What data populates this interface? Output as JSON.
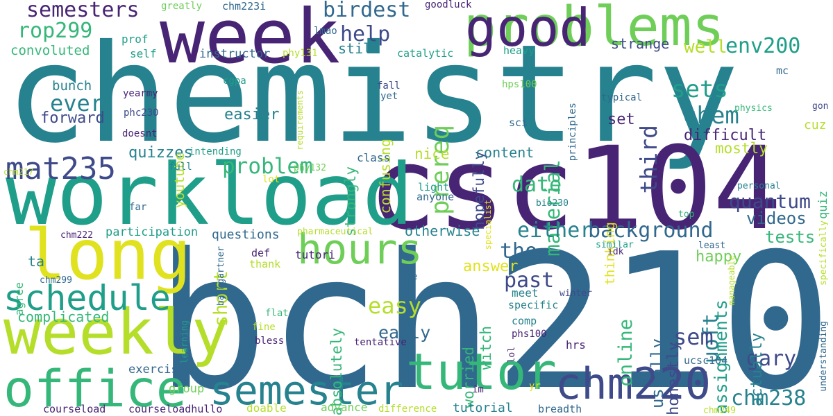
{
  "palette": {
    "dark_purple": "#482475",
    "indigo": "#3e4a89",
    "blue": "#31688e",
    "teal": "#26828e",
    "sea_green": "#1f9e89",
    "green": "#35b779",
    "light_green": "#6ece58",
    "yellow_green": "#b5de2b",
    "yellow": "#e0e21f"
  },
  "words": [
    {
      "text": "chemistry",
      "color": "#26828e",
      "weight": 1.0
    },
    {
      "text": "bch210",
      "color": "#31688e",
      "weight": 0.95
    },
    {
      "text": "csc104",
      "color": "#482475",
      "weight": 0.88
    },
    {
      "text": "workload",
      "color": "#1f9e89",
      "weight": 0.72
    },
    {
      "text": "week",
      "color": "#482475",
      "weight": 0.55
    },
    {
      "text": "problems",
      "color": "#6ece58",
      "weight": 0.52
    },
    {
      "text": "good",
      "color": "#482475",
      "weight": 0.45
    },
    {
      "text": "long",
      "color": "#e0e21f",
      "weight": 0.5
    },
    {
      "text": "weekly",
      "color": "#b5de2b",
      "weight": 0.5
    },
    {
      "text": "office",
      "color": "#35b779",
      "weight": 0.45
    },
    {
      "text": "tutor",
      "color": "#35b779",
      "weight": 0.42
    },
    {
      "text": "semester",
      "color": "#26828e",
      "weight": 0.4
    },
    {
      "text": "chm220",
      "color": "#3e4a89",
      "weight": 0.4
    },
    {
      "text": "hours",
      "color": "#6ece58",
      "weight": 0.38
    },
    {
      "text": "schedule",
      "color": "#1f9e89",
      "weight": 0.32
    },
    {
      "text": "mat235",
      "color": "#3e4a89",
      "weight": 0.3
    },
    {
      "text": "semesters",
      "color": "#482475",
      "weight": 0.25
    },
    {
      "text": "birdest",
      "color": "#31688e",
      "weight": 0.25
    },
    {
      "text": "rop299",
      "color": "#35b779",
      "weight": 0.25
    },
    {
      "text": "help",
      "color": "#3e4a89",
      "weight": 0.22
    },
    {
      "text": "prereq",
      "color": "#6ece58",
      "weight": 0.25
    },
    {
      "text": "material",
      "color": "#35b779",
      "weight": 0.25
    },
    {
      "text": "third",
      "color": "#3e4a89",
      "weight": 0.25
    },
    {
      "text": "sets",
      "color": "#1f9e89",
      "weight": 0.25
    },
    {
      "text": "env200",
      "color": "#1f9e89",
      "weight": 0.22
    },
    {
      "text": "well",
      "color": "#b5de2b",
      "weight": 0.18
    },
    {
      "text": "chem",
      "color": "#26828e",
      "weight": 0.25
    },
    {
      "text": "ever",
      "color": "#26828e",
      "weight": 0.25
    },
    {
      "text": "problem",
      "color": "#35b779",
      "weight": 0.25
    },
    {
      "text": "date",
      "color": "#35b779",
      "weight": 0.25
    },
    {
      "text": "quantum",
      "color": "#3e4a89",
      "weight": 0.22
    },
    {
      "text": "either",
      "color": "#26828e",
      "weight": 0.25
    },
    {
      "text": "background",
      "color": "#31688e",
      "weight": 0.25
    },
    {
      "text": "tho",
      "color": "#31688e",
      "weight": 0.25
    },
    {
      "text": "past",
      "color": "#3e4a89",
      "weight": 0.25
    },
    {
      "text": "easy",
      "color": "#b5de2b",
      "weight": 0.25
    },
    {
      "text": "short",
      "color": "#b5de2b",
      "weight": 0.25
    },
    {
      "text": "online",
      "color": "#35b779",
      "weight": 0.22
    },
    {
      "text": "uoft",
      "color": "#26828e",
      "weight": 0.25
    },
    {
      "text": "sem",
      "color": "#3e4a89",
      "weight": 0.25
    },
    {
      "text": "assignments",
      "color": "#1f9e89",
      "weight": 0.22
    },
    {
      "text": "gary",
      "color": "#3e4a89",
      "weight": 0.22
    },
    {
      "text": "chm238",
      "color": "#26828e",
      "weight": 0.22
    },
    {
      "text": "early",
      "color": "#31688e",
      "weight": 0.18
    },
    {
      "text": "usually",
      "color": "#31688e",
      "weight": 0.2
    },
    {
      "text": "honestly",
      "color": "#3e4a89",
      "weight": 0.18
    },
    {
      "text": "actually",
      "color": "#26828e",
      "weight": 0.18
    },
    {
      "text": "tests",
      "color": "#35b779",
      "weight": 0.18
    },
    {
      "text": "happy",
      "color": "#6ece58",
      "weight": 0.16
    },
    {
      "text": "videos",
      "color": "#31688e",
      "weight": 0.16
    },
    {
      "text": "answer",
      "color": "#e0e21f",
      "weight": 0.16
    },
    {
      "text": "worried",
      "color": "#35b779",
      "weight": 0.16
    },
    {
      "text": "absolutely",
      "color": "#35b779",
      "weight": 0.16
    },
    {
      "text": "witch",
      "color": "#35b779",
      "weight": 0.16
    },
    {
      "text": "hopefully",
      "color": "#3e4a89",
      "weight": 0.16
    },
    {
      "text": "strongly",
      "color": "#35b779",
      "weight": 0.16
    },
    {
      "text": "confusing",
      "color": "#b5de2b",
      "weight": 0.16
    },
    {
      "text": "thinking",
      "color": "#e0e21f",
      "weight": 0.14
    },
    {
      "text": "difficult",
      "color": "#482475",
      "weight": 0.16
    },
    {
      "text": "mostly",
      "color": "#b5de2b",
      "weight": 0.16
    },
    {
      "text": "quizzes",
      "color": "#26828e",
      "weight": 0.16
    },
    {
      "text": "easier",
      "color": "#26828e",
      "weight": 0.16
    },
    {
      "text": "forward",
      "color": "#3e4a89",
      "weight": 0.16
    },
    {
      "text": "bunch",
      "color": "#26828e",
      "weight": 0.14
    },
    {
      "text": "convoluted",
      "color": "#35b779",
      "weight": 0.14
    },
    {
      "text": "youtube",
      "color": "#b5de2b",
      "weight": 0.14
    },
    {
      "text": "still",
      "color": "#26828e",
      "weight": 0.14
    },
    {
      "text": "strange",
      "color": "#3e4a89",
      "weight": 0.14
    },
    {
      "text": "set",
      "color": "#482475",
      "weight": 0.14
    },
    {
      "text": "content",
      "color": "#26828e",
      "weight": 0.14
    },
    {
      "text": "nice",
      "color": "#b5de2b",
      "weight": 0.14
    },
    {
      "text": "quiz",
      "color": "#35b779",
      "weight": 0.12
    },
    {
      "text": "cuz",
      "color": "#b5de2b",
      "weight": 0.12
    },
    {
      "text": "otherwise",
      "color": "#26828e",
      "weight": 0.14
    },
    {
      "text": "questions",
      "color": "#31688e",
      "weight": 0.14
    },
    {
      "text": "complicated",
      "color": "#35b779",
      "weight": 0.14
    },
    {
      "text": "agree",
      "color": "#35b779",
      "weight": 0.12
    },
    {
      "text": "ta",
      "color": "#26828e",
      "weight": 0.14
    },
    {
      "text": "participation",
      "color": "#1f9e89",
      "weight": 0.12
    },
    {
      "text": "exercise",
      "color": "#31688e",
      "weight": 0.12
    },
    {
      "text": "group",
      "color": "#6ece58",
      "weight": 0.12
    },
    {
      "text": "courseload",
      "color": "#482475",
      "weight": 0.1
    },
    {
      "text": "courseloadhullo",
      "color": "#482475",
      "weight": 0.1
    },
    {
      "text": "doable",
      "color": "#b5de2b",
      "weight": 0.1
    },
    {
      "text": "advance",
      "color": "#6ece58",
      "weight": 0.1
    },
    {
      "text": "difference",
      "color": "#b5de2b",
      "weight": 0.09
    },
    {
      "text": "tutorial",
      "color": "#26828e",
      "weight": 0.12
    },
    {
      "text": "breadth",
      "color": "#31688e",
      "weight": 0.1
    },
    {
      "text": "chm249",
      "color": "#b5de2b",
      "weight": 0.08
    },
    {
      "text": "instructor",
      "color": "#31688e",
      "weight": 0.12
    },
    {
      "text": "prof",
      "color": "#1f9e89",
      "weight": 0.1
    },
    {
      "text": "self",
      "color": "#1f9e89",
      "weight": 0.1
    },
    {
      "text": "lmao",
      "color": "#31688e",
      "weight": 0.09
    },
    {
      "text": "greatly",
      "color": "#6ece58",
      "weight": 0.09
    },
    {
      "text": "chm223i",
      "color": "#31688e",
      "weight": 0.1
    },
    {
      "text": "goodluck",
      "color": "#482475",
      "weight": 0.09
    },
    {
      "text": "phy131",
      "color": "#b5de2b",
      "weight": 0.09
    },
    {
      "text": "catalytic",
      "color": "#1f9e89",
      "weight": 0.1
    },
    {
      "text": "heavy",
      "color": "#1f9e89",
      "weight": 0.1
    },
    {
      "text": "mc",
      "color": "#31688e",
      "weight": 0.1
    },
    {
      "text": "cgpa",
      "color": "#1f9e89",
      "weight": 0.09
    },
    {
      "text": "yearmy",
      "color": "#482475",
      "weight": 0.09
    },
    {
      "text": "phc230",
      "color": "#3e4a89",
      "weight": 0.09
    },
    {
      "text": "doesnt",
      "color": "#482475",
      "weight": 0.09
    },
    {
      "text": "requirements",
      "color": "#b5de2b",
      "weight": 0.08
    },
    {
      "text": "fall",
      "color": "#3e4a89",
      "weight": 0.09
    },
    {
      "text": "yet",
      "color": "#31688e",
      "weight": 0.09
    },
    {
      "text": "hps100",
      "color": "#6ece58",
      "weight": 0.09
    },
    {
      "text": "sci",
      "color": "#31688e",
      "weight": 0.1
    },
    {
      "text": "principles",
      "color": "#31688e",
      "weight": 0.09
    },
    {
      "text": "typical",
      "color": "#31688e",
      "weight": 0.09
    },
    {
      "text": "physics",
      "color": "#35b779",
      "weight": 0.09
    },
    {
      "text": "gon",
      "color": "#3e4a89",
      "weight": 0.08
    },
    {
      "text": "chm217",
      "color": "#b5de2b",
      "weight": 0.08
    },
    {
      "text": "intending",
      "color": "#1f9e89",
      "weight": 0.1
    },
    {
      "text": "phy132",
      "color": "#6ece58",
      "weight": 0.09
    },
    {
      "text": "full",
      "color": "#26828e",
      "weight": 0.09
    },
    {
      "text": "class",
      "color": "#31688e",
      "weight": 0.1
    },
    {
      "text": "lot",
      "color": "#e0e21f",
      "weight": 0.09
    },
    {
      "text": "light",
      "color": "#1f9e89",
      "weight": 0.1
    },
    {
      "text": "anyone",
      "color": "#31688e",
      "weight": 0.1
    },
    {
      "text": "specialist",
      "color": "#e0e21f",
      "weight": 0.08
    },
    {
      "text": "bio230",
      "color": "#26828e",
      "weight": 0.09
    },
    {
      "text": "far",
      "color": "#31688e",
      "weight": 0.09
    },
    {
      "text": "personal",
      "color": "#26828e",
      "weight": 0.09
    },
    {
      "text": "top",
      "color": "#35b779",
      "weight": 0.09
    },
    {
      "text": "chm222",
      "color": "#482475",
      "weight": 0.09
    },
    {
      "text": "pharmaceutical",
      "color": "#b5de2b",
      "weight": 0.09
    },
    {
      "text": "def",
      "color": "#482475",
      "weight": 0.1
    },
    {
      "text": "thank",
      "color": "#b5de2b",
      "weight": 0.1
    },
    {
      "text": "tutori",
      "color": "#482475",
      "weight": 0.1
    },
    {
      "text": "similar",
      "color": "#1f9e89",
      "weight": 0.09
    },
    {
      "text": "idk",
      "color": "#482475",
      "weight": 0.09
    },
    {
      "text": "least",
      "color": "#31688e",
      "weight": 0.09
    },
    {
      "text": "specifically",
      "color": "#b5de2b",
      "weight": 0.09
    },
    {
      "text": "manageable",
      "color": "#b5de2b",
      "weight": 0.08
    },
    {
      "text": "chm299",
      "color": "#31688e",
      "weight": 0.08
    },
    {
      "text": "baumgartner",
      "color": "#31688e",
      "weight": 0.08
    },
    {
      "text": "due",
      "color": "#31688e",
      "weight": 0.08
    },
    {
      "text": "meet",
      "color": "#26828e",
      "weight": 0.1
    },
    {
      "text": "winter",
      "color": "#3e4a89",
      "weight": 0.09
    },
    {
      "text": "specific",
      "color": "#26828e",
      "weight": 0.1
    },
    {
      "text": "comp",
      "color": "#26828e",
      "weight": 0.1
    },
    {
      "text": "understanding",
      "color": "#31688e",
      "weight": 0.09
    },
    {
      "text": "flat",
      "color": "#35b779",
      "weight": 0.09
    },
    {
      "text": "fine",
      "color": "#b5de2b",
      "weight": 0.09
    },
    {
      "text": "bless",
      "color": "#482475",
      "weight": 0.09
    },
    {
      "text": "learning",
      "color": "#1f9e89",
      "weight": 0.09
    },
    {
      "text": "tentative",
      "color": "#482475",
      "weight": 0.09
    },
    {
      "text": "phs100",
      "color": "#482475",
      "weight": 0.09
    },
    {
      "text": "lol",
      "color": "#482475",
      "weight": 0.09
    },
    {
      "text": "hrs",
      "color": "#482475",
      "weight": 0.1
    },
    {
      "text": "ucsc104",
      "color": "#31688e",
      "weight": 0.1
    },
    {
      "text": "im",
      "color": "#482475",
      "weight": 0.1
    },
    {
      "text": "yr",
      "color": "#e0e21f",
      "weight": 0.09
    }
  ]
}
